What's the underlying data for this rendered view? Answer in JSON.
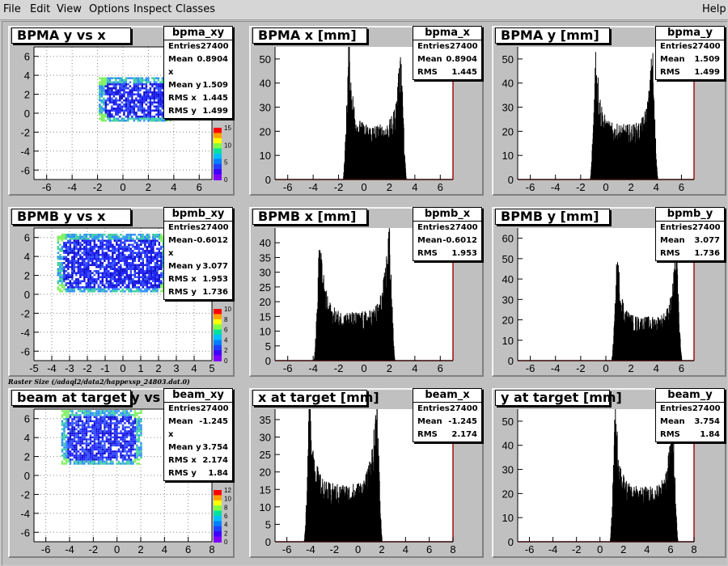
{
  "menu": {
    "file": "File",
    "edit": "Edit",
    "view": "View",
    "options": "Options",
    "inspect": "Inspect",
    "classes": "Classes",
    "help": "Help"
  },
  "caption": "Raster Size (/adaql2/data2/happexsp_24803.dat.0)",
  "colors": {
    "background": "#c0c0c0",
    "frame_line": "#a01010",
    "histogram": "#000000"
  },
  "pads": {
    "bpma_xy": {
      "title": "BPMA y vs x",
      "stats_name": "bpma_xy",
      "stats": [
        {
          "k": "Entries",
          "v": "27400"
        },
        {
          "k": "Mean x",
          "v": "0.8904"
        },
        {
          "k": "Mean y",
          "v": "1.509"
        },
        {
          "k": "RMS x",
          "v": "1.445"
        },
        {
          "k": "RMS y",
          "v": "1.499"
        }
      ],
      "xticks": [
        "-6",
        "-4",
        "-2",
        "0",
        "2",
        "4",
        "6"
      ],
      "yticks": [
        "6",
        "4",
        "2",
        "0",
        "-2",
        "-4",
        "-6"
      ],
      "palette_ticks": [
        "15",
        "10",
        "5",
        "0"
      ]
    },
    "bpma_x": {
      "title": "BPMA x [mm]",
      "stats_name": "bpma_x",
      "stats": [
        {
          "k": "Entries",
          "v": "27400"
        },
        {
          "k": "Mean",
          "v": "0.8904"
        },
        {
          "k": "RMS",
          "v": "1.445"
        }
      ],
      "xticks": [
        "-6",
        "-4",
        "-2",
        "0",
        "2",
        "4",
        "6"
      ],
      "yticks": [
        "50",
        "40",
        "30",
        "20",
        "10",
        "0"
      ]
    },
    "bpma_y": {
      "title": "BPMA y [mm]",
      "stats_name": "bpma_y",
      "stats": [
        {
          "k": "Entries",
          "v": "27400"
        },
        {
          "k": "Mean",
          "v": "1.509"
        },
        {
          "k": "RMS",
          "v": "1.499"
        }
      ],
      "xticks": [
        "-6",
        "-4",
        "-2",
        "0",
        "2",
        "4",
        "6"
      ],
      "yticks": [
        "50",
        "40",
        "30",
        "20",
        "10",
        "0"
      ]
    },
    "bpmb_xy": {
      "title": "BPMB y vs x",
      "stats_name": "bpmb_xy",
      "stats": [
        {
          "k": "Entries",
          "v": "27400"
        },
        {
          "k": "Mean x",
          "v": "-0.6012"
        },
        {
          "k": "Mean y",
          "v": "3.077"
        },
        {
          "k": "RMS x",
          "v": "1.953"
        },
        {
          "k": "RMS y",
          "v": "1.736"
        }
      ],
      "xticks": [
        "-5",
        "-4",
        "-3",
        "-2",
        "-1",
        "0",
        "1",
        "2",
        "3",
        "4",
        "5"
      ],
      "yticks": [
        "6",
        "4",
        "2",
        "0",
        "-2",
        "-4",
        "-6"
      ],
      "palette_ticks": [
        "10",
        "8",
        "6",
        "4",
        "2",
        "0"
      ]
    },
    "bpmb_x": {
      "title": "BPMB x [mm]",
      "stats_name": "bpmb_x",
      "stats": [
        {
          "k": "Entries",
          "v": "27400"
        },
        {
          "k": "Mean",
          "v": "-0.6012"
        },
        {
          "k": "RMS",
          "v": "1.953"
        }
      ],
      "xticks": [
        "-6",
        "-4",
        "-2",
        "0",
        "2",
        "4",
        "6"
      ],
      "yticks": [
        "40",
        "35",
        "30",
        "25",
        "20",
        "15",
        "10",
        "5",
        "0"
      ]
    },
    "bpmb_y": {
      "title": "BPMB y [mm]",
      "stats_name": "bpmb_y",
      "stats": [
        {
          "k": "Entries",
          "v": "27400"
        },
        {
          "k": "Mean",
          "v": "3.077"
        },
        {
          "k": "RMS",
          "v": "1.736"
        }
      ],
      "xticks": [
        "-6",
        "-4",
        "-2",
        "0",
        "2",
        "4",
        "6"
      ],
      "yticks": [
        "60",
        "50",
        "40",
        "30",
        "20",
        "10",
        "0"
      ]
    },
    "beam_xy": {
      "title": "beam at target y vs x",
      "stats_name": "beam_xy",
      "stats": [
        {
          "k": "Entries",
          "v": "27400"
        },
        {
          "k": "Mean x",
          "v": "-1.245"
        },
        {
          "k": "Mean y",
          "v": "3.754"
        },
        {
          "k": "RMS x",
          "v": "2.174"
        },
        {
          "k": "RMS y",
          "v": "1.84"
        }
      ],
      "xticks": [
        "-6",
        "-4",
        "-2",
        "0",
        "2",
        "4",
        "6",
        "8"
      ],
      "yticks": [
        "6",
        "4",
        "2",
        "0",
        "-2",
        "-4",
        "-6"
      ],
      "palette_ticks": [
        "12",
        "10",
        "8",
        "6",
        "4",
        "2",
        "0"
      ]
    },
    "beam_x": {
      "title": "x at target [mm]",
      "stats_name": "beam_x",
      "stats": [
        {
          "k": "Entries",
          "v": "27400"
        },
        {
          "k": "Mean",
          "v": "-1.245"
        },
        {
          "k": "RMS",
          "v": "2.174"
        }
      ],
      "xticks": [
        "-6",
        "-4",
        "-2",
        "0",
        "2",
        "4",
        "6",
        "8"
      ],
      "yticks": [
        "35",
        "30",
        "25",
        "20",
        "15",
        "10",
        "5",
        "0"
      ]
    },
    "beam_y": {
      "title": "y at target [mm]",
      "stats_name": "beam_y",
      "stats": [
        {
          "k": "Entries",
          "v": "27400"
        },
        {
          "k": "Mean",
          "v": "3.754"
        },
        {
          "k": "RMS",
          "v": "1.84"
        }
      ],
      "xticks": [
        "-6",
        "-4",
        "-2",
        "0",
        "2",
        "4",
        "6",
        "8"
      ],
      "yticks": [
        "50",
        "40",
        "30",
        "20",
        "10",
        "0"
      ]
    }
  },
  "chart_data": [
    {
      "type": "heatmap",
      "title": "BPMA y vs x",
      "xlim": [
        -7,
        7
      ],
      "ylim": [
        -7,
        7
      ],
      "region_x": [
        -1.9,
        3.8
      ],
      "region_y": [
        -0.8,
        3.8
      ]
    },
    {
      "type": "bar",
      "title": "BPMA x [mm]",
      "xlim": [
        -7,
        7
      ],
      "ylim": [
        0,
        55
      ],
      "peaks": [
        [
          -1.2,
          50
        ],
        [
          2.9,
          50
        ]
      ],
      "plateau": 18
    },
    {
      "type": "bar",
      "title": "BPMA y [mm]",
      "xlim": [
        -7,
        7
      ],
      "ylim": [
        0,
        55
      ],
      "peaks": [
        [
          -0.8,
          48
        ],
        [
          3.7,
          47
        ]
      ],
      "plateau": 18
    },
    {
      "type": "heatmap",
      "title": "BPMB y vs x",
      "xlim": [
        -5,
        5
      ],
      "ylim": [
        -7,
        7
      ],
      "region_x": [
        -3.7,
        2.4
      ],
      "region_y": [
        0.3,
        6.4
      ]
    },
    {
      "type": "bar",
      "title": "BPMB x [mm]",
      "xlim": [
        -7,
        7
      ],
      "ylim": [
        0,
        45
      ],
      "peaks": [
        [
          -3.5,
          36
        ],
        [
          2.0,
          42
        ]
      ],
      "plateau": 13
    },
    {
      "type": "bar",
      "title": "BPMB y [mm]",
      "xlim": [
        -7,
        7
      ],
      "ylim": [
        0,
        65
      ],
      "peaks": [
        [
          0.9,
          45
        ],
        [
          5.6,
          49
        ]
      ],
      "plateau": 17
    },
    {
      "type": "heatmap",
      "title": "beam at target y vs x",
      "xlim": [
        -7,
        8
      ],
      "ylim": [
        -7,
        7
      ],
      "region_x": [
        -4.7,
        2.0
      ],
      "region_y": [
        1.2,
        6.9
      ]
    },
    {
      "type": "bar",
      "title": "x at target [mm]",
      "xlim": [
        -7,
        8
      ],
      "ylim": [
        0,
        38
      ],
      "peaks": [
        [
          -4.1,
          35
        ],
        [
          1.6,
          37
        ]
      ],
      "plateau": 13
    },
    {
      "type": "bar",
      "title": "y at target [mm]",
      "xlim": [
        -7,
        8
      ],
      "ylim": [
        0,
        55
      ],
      "peaks": [
        [
          1.3,
          48
        ],
        [
          6.2,
          50
        ]
      ],
      "plateau": 18
    }
  ]
}
